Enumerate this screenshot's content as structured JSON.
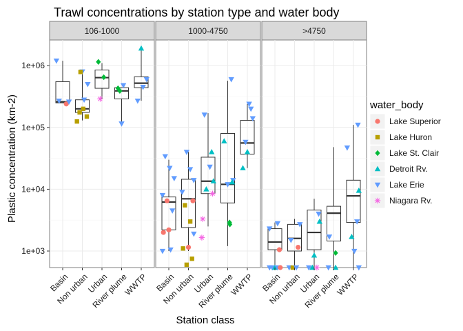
{
  "chart_data": {
    "type": "boxplot",
    "title": "Trawl concentrations by station type and water body",
    "xlabel": "Station class",
    "ylabel": "Plastic concentration (km-2)",
    "yscale": "log10",
    "ylim": [
      540,
      2600000
    ],
    "yticks": [
      1000,
      10000,
      100000,
      1000000
    ],
    "ytick_labels": [
      "1e+03",
      "1e+04",
      "1e+05",
      "1e+06"
    ],
    "categories": [
      "Basin",
      "Non urban",
      "Urban",
      "River plume",
      "WWTP"
    ],
    "legend": {
      "title": "water_body",
      "position": "right",
      "items": [
        {
          "name": "Lake Superior",
          "color": "#F8766D",
          "shape": "circle"
        },
        {
          "name": "Lake Huron",
          "color": "#B79F00",
          "shape": "square"
        },
        {
          "name": "Lake St. Clair",
          "color": "#00BA38",
          "shape": "diamond"
        },
        {
          "name": "Detroit Rv.",
          "color": "#00BFC4",
          "shape": "triangle-up"
        },
        {
          "name": "Lake Erie",
          "color": "#619CFF",
          "shape": "triangle-down"
        },
        {
          "name": "Niagara Rv.",
          "color": "#F564E3",
          "shape": "asterisk"
        }
      ]
    },
    "panels": [
      {
        "label": "106-1000",
        "boxes": [
          {
            "category": "Basin",
            "lo": 250000,
            "q1": 250000,
            "median": 260000,
            "q3": 550000,
            "hi": 1200000
          },
          {
            "category": "Non urban",
            "lo": 130000,
            "q1": 175000,
            "median": 200000,
            "q3": 280000,
            "hi": 790000
          },
          {
            "category": "Urban",
            "lo": 290000,
            "q1": 430000,
            "median": 640000,
            "q3": 850000,
            "hi": 1100000
          },
          {
            "category": "River plume",
            "lo": 115000,
            "q1": 290000,
            "median": 390000,
            "q3": 440000,
            "hi": 440000
          },
          {
            "category": "WWTP",
            "lo": 270000,
            "q1": 440000,
            "median": 520000,
            "q3": 660000,
            "hi": 1900000
          }
        ],
        "points": [
          {
            "cat": 0,
            "body": 4,
            "y": 1200000,
            "j": -0.35
          },
          {
            "cat": 0,
            "body": 4,
            "y": 270000,
            "j": -0.2
          },
          {
            "cat": 0,
            "body": 0,
            "y": 240000,
            "j": 0.2
          },
          {
            "cat": 0,
            "body": 4,
            "y": 260000,
            "j": 0.35
          },
          {
            "cat": 1,
            "body": 1,
            "y": 125000,
            "j": -0.3
          },
          {
            "cat": 1,
            "body": 1,
            "y": 175000,
            "j": -0.15
          },
          {
            "cat": 1,
            "body": 1,
            "y": 200000,
            "j": 0.05
          },
          {
            "cat": 1,
            "body": 1,
            "y": 150000,
            "j": 0.25
          },
          {
            "cat": 1,
            "body": 4,
            "y": 280000,
            "j": 0.1
          },
          {
            "cat": 1,
            "body": 4,
            "y": 500000,
            "j": 0.3
          },
          {
            "cat": 1,
            "body": 4,
            "y": 800000,
            "j": 0.0
          },
          {
            "cat": 1,
            "body": 1,
            "y": 790000,
            "j": -0.1
          },
          {
            "cat": 2,
            "body": 2,
            "y": 1150000,
            "j": -0.2
          },
          {
            "cat": 2,
            "body": 5,
            "y": 290000,
            "j": -0.1
          },
          {
            "cat": 2,
            "body": 2,
            "y": 650000,
            "j": 0.1
          },
          {
            "cat": 3,
            "body": 2,
            "y": 390000,
            "j": -0.1
          },
          {
            "cat": 3,
            "body": 2,
            "y": 430000,
            "j": -0.2
          },
          {
            "cat": 3,
            "body": 4,
            "y": 480000,
            "j": 0.1
          },
          {
            "cat": 3,
            "body": 4,
            "y": 115000,
            "j": 0.0
          },
          {
            "cat": 4,
            "body": 4,
            "y": 270000,
            "j": -0.2
          },
          {
            "cat": 4,
            "body": 4,
            "y": 450000,
            "j": 0.1
          },
          {
            "cat": 4,
            "body": 3,
            "y": 1900000,
            "j": 0.0
          },
          {
            "cat": 4,
            "body": 4,
            "y": 600000,
            "j": 0.3
          }
        ]
      },
      {
        "label": "1000-4750",
        "boxes": [
          {
            "category": "Basin",
            "lo": 1000,
            "q1": 2200,
            "median": 6200,
            "q3": 7500,
            "hi": 30000
          },
          {
            "category": "Non urban",
            "lo": 1000,
            "q1": 2400,
            "median": 7000,
            "q3": 14500,
            "hi": 40000
          },
          {
            "category": "Urban",
            "lo": 2500,
            "q1": 8500,
            "median": 13500,
            "q3": 33000,
            "hi": 170000
          },
          {
            "category": "River plume",
            "lo": 1200,
            "q1": 6000,
            "median": 12000,
            "q3": 80000,
            "hi": 570000
          },
          {
            "category": "WWTP",
            "lo": 22000,
            "q1": 37000,
            "median": 56000,
            "q3": 130000,
            "hi": 240000
          }
        ],
        "points": [
          {
            "cat": 0,
            "body": 4,
            "y": 34000,
            "j": -0.2
          },
          {
            "cat": 0,
            "body": 4,
            "y": 8000,
            "j": -0.35
          },
          {
            "cat": 0,
            "body": 0,
            "y": 6500,
            "j": -0.1
          },
          {
            "cat": 0,
            "body": 4,
            "y": 4500,
            "j": 0.2
          },
          {
            "cat": 0,
            "body": 0,
            "y": 2200,
            "j": 0.0
          },
          {
            "cat": 0,
            "body": 0,
            "y": 2000,
            "j": -0.3
          },
          {
            "cat": 0,
            "body": 4,
            "y": 1000,
            "j": -0.35
          },
          {
            "cat": 0,
            "body": 4,
            "y": 1050,
            "j": 0.1
          },
          {
            "cat": 0,
            "body": 4,
            "y": 15000,
            "j": 0.3
          },
          {
            "cat": 0,
            "body": 4,
            "y": 22000,
            "j": 0.05
          },
          {
            "cat": 1,
            "body": 4,
            "y": 40000,
            "j": -0.1
          },
          {
            "cat": 1,
            "body": 4,
            "y": 21000,
            "j": 0.1
          },
          {
            "cat": 1,
            "body": 1,
            "y": 5500,
            "j": -0.2
          },
          {
            "cat": 1,
            "body": 1,
            "y": 3000,
            "j": 0.1
          },
          {
            "cat": 1,
            "body": 1,
            "y": 1100,
            "j": -0.3
          },
          {
            "cat": 1,
            "body": 0,
            "y": 1150,
            "j": 0.0
          },
          {
            "cat": 1,
            "body": 1,
            "y": 750,
            "j": 0.2
          },
          {
            "cat": 1,
            "body": 1,
            "y": 600,
            "j": -0.1
          },
          {
            "cat": 1,
            "body": 4,
            "y": 14000,
            "j": 0.3
          },
          {
            "cat": 1,
            "body": 4,
            "y": 9000,
            "j": -0.35
          },
          {
            "cat": 1,
            "body": 0,
            "y": 6500,
            "j": 0.25
          },
          {
            "cat": 1,
            "body": 4,
            "y": 1900,
            "j": 0.3
          },
          {
            "cat": 2,
            "body": 4,
            "y": 160000,
            "j": -0.2
          },
          {
            "cat": 2,
            "body": 3,
            "y": 40000,
            "j": 0.2
          },
          {
            "cat": 2,
            "body": 4,
            "y": 23000,
            "j": 0.1
          },
          {
            "cat": 2,
            "body": 3,
            "y": 13500,
            "j": 0.3
          },
          {
            "cat": 2,
            "body": 3,
            "y": 10000,
            "j": -0.1
          },
          {
            "cat": 2,
            "body": 5,
            "y": 3300,
            "j": -0.3
          },
          {
            "cat": 2,
            "body": 5,
            "y": 1650,
            "j": -0.35
          },
          {
            "cat": 2,
            "body": 5,
            "y": 8500,
            "j": 0.25
          },
          {
            "cat": 3,
            "body": 4,
            "y": 12000,
            "j": 0.0
          },
          {
            "cat": 3,
            "body": 3,
            "y": 60000,
            "j": -0.2
          },
          {
            "cat": 3,
            "body": 2,
            "y": 2900,
            "j": 0.1
          },
          {
            "cat": 3,
            "body": 2,
            "y": 2700,
            "j": 0.12
          },
          {
            "cat": 3,
            "body": 4,
            "y": 14000,
            "j": 0.3
          },
          {
            "cat": 3,
            "body": 4,
            "y": 600000,
            "j": 0.2
          },
          {
            "cat": 3,
            "body": 3,
            "y": 13000,
            "j": 0.25
          },
          {
            "cat": 4,
            "body": 4,
            "y": 240000,
            "j": 0.1
          },
          {
            "cat": 4,
            "body": 4,
            "y": 200000,
            "j": 0.2
          },
          {
            "cat": 4,
            "body": 4,
            "y": 58000,
            "j": -0.1
          },
          {
            "cat": 4,
            "body": 3,
            "y": 40000,
            "j": 0.0
          },
          {
            "cat": 4,
            "body": 3,
            "y": 22000,
            "j": -0.25
          },
          {
            "cat": 4,
            "body": 4,
            "y": 140000,
            "j": 0.3
          }
        ]
      },
      {
        "label": ">4750",
        "boxes": [
          {
            "category": "Basin",
            "lo": 540,
            "q1": 1050,
            "median": 1400,
            "q3": 2300,
            "hi": 2900
          },
          {
            "category": "Non urban",
            "lo": 540,
            "q1": 1000,
            "median": 1600,
            "q3": 2700,
            "hi": 3300
          },
          {
            "category": "Urban",
            "lo": 540,
            "q1": 1050,
            "median": 2000,
            "q3": 4600,
            "hi": 7000
          },
          {
            "category": "River plume",
            "lo": 540,
            "q1": 1450,
            "median": 4100,
            "q3": 5300,
            "hi": 48000
          },
          {
            "category": "WWTP",
            "lo": 540,
            "q1": 2900,
            "median": 7800,
            "q3": 14000,
            "hi": 110000
          }
        ],
        "points": [
          {
            "cat": 0,
            "body": 4,
            "y": 540,
            "j": -0.3
          },
          {
            "cat": 0,
            "body": 4,
            "y": 540,
            "j": -0.15
          },
          {
            "cat": 0,
            "body": 3,
            "y": 540,
            "j": 0.0
          },
          {
            "cat": 0,
            "body": 4,
            "y": 540,
            "j": 0.15
          },
          {
            "cat": 0,
            "body": 0,
            "y": 540,
            "j": 0.3
          },
          {
            "cat": 0,
            "body": 4,
            "y": 2800,
            "j": 0.15
          },
          {
            "cat": 0,
            "body": 0,
            "y": 1050,
            "j": 0.25
          },
          {
            "cat": 0,
            "body": 4,
            "y": 2300,
            "j": -0.3
          },
          {
            "cat": 1,
            "body": 4,
            "y": 540,
            "j": -0.3
          },
          {
            "cat": 1,
            "body": 1,
            "y": 540,
            "j": -0.1
          },
          {
            "cat": 1,
            "body": 4,
            "y": 540,
            "j": 0.1
          },
          {
            "cat": 1,
            "body": 0,
            "y": 1150,
            "j": 0.2
          },
          {
            "cat": 1,
            "body": 4,
            "y": 2700,
            "j": 0.3
          },
          {
            "cat": 1,
            "body": 4,
            "y": 1500,
            "j": -0.2
          },
          {
            "cat": 2,
            "body": 4,
            "y": 540,
            "j": -0.3
          },
          {
            "cat": 2,
            "body": 3,
            "y": 540,
            "j": -0.1
          },
          {
            "cat": 2,
            "body": 5,
            "y": 540,
            "j": 0.15
          },
          {
            "cat": 2,
            "body": 3,
            "y": 850,
            "j": 0.0
          },
          {
            "cat": 2,
            "body": 3,
            "y": 3000,
            "j": 0.3
          },
          {
            "cat": 2,
            "body": 4,
            "y": 4000,
            "j": 0.25
          },
          {
            "cat": 3,
            "body": 4,
            "y": 540,
            "j": -0.3
          },
          {
            "cat": 3,
            "body": 3,
            "y": 540,
            "j": 0.1
          },
          {
            "cat": 3,
            "body": 2,
            "y": 930,
            "j": 0.1
          },
          {
            "cat": 3,
            "body": 4,
            "y": 1700,
            "j": -0.25
          },
          {
            "cat": 4,
            "body": 4,
            "y": 110000,
            "j": 0.25
          },
          {
            "cat": 4,
            "body": 4,
            "y": 47000,
            "j": -0.35
          },
          {
            "cat": 4,
            "body": 3,
            "y": 9500,
            "j": 0.3
          },
          {
            "cat": 4,
            "body": 4,
            "y": 3000,
            "j": 0.2
          },
          {
            "cat": 4,
            "body": 3,
            "y": 1700,
            "j": -0.1
          },
          {
            "cat": 4,
            "body": 4,
            "y": 540,
            "j": 0.3
          },
          {
            "cat": 4,
            "body": 4,
            "y": 1000,
            "j": 0.05
          }
        ]
      }
    ]
  }
}
